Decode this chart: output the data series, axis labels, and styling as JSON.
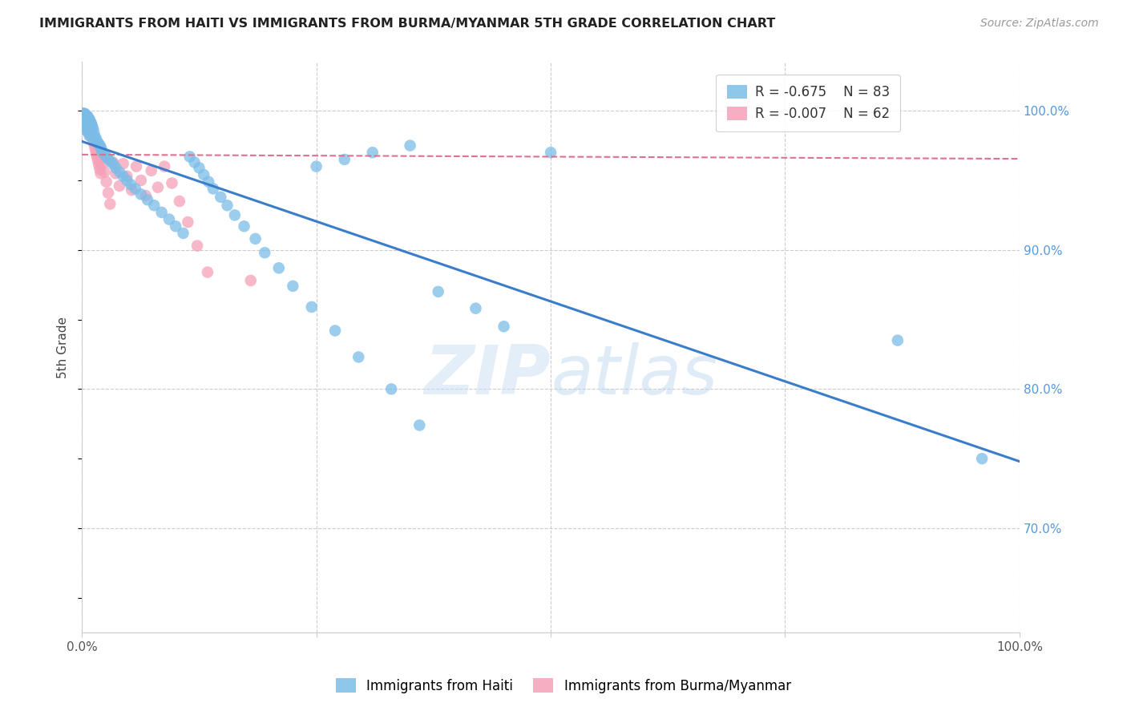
{
  "title": "IMMIGRANTS FROM HAITI VS IMMIGRANTS FROM BURMA/MYANMAR 5TH GRADE CORRELATION CHART",
  "source": "Source: ZipAtlas.com",
  "ylabel": "5th Grade",
  "xlim": [
    0.0,
    1.0
  ],
  "ylim": [
    0.625,
    1.035
  ],
  "ytick_labels": [
    "70.0%",
    "80.0%",
    "90.0%",
    "100.0%"
  ],
  "ytick_values": [
    0.7,
    0.8,
    0.9,
    1.0
  ],
  "grid_color": "#cccccc",
  "background_color": "#ffffff",
  "haiti_color": "#7bbde8",
  "burma_color": "#f5a0b8",
  "haiti_line_color": "#3a7dc9",
  "burma_line_color": "#e07090",
  "haiti_R": -0.675,
  "haiti_N": 83,
  "burma_R": -0.007,
  "burma_N": 62,
  "haiti_trendline_x": [
    0.0,
    1.0
  ],
  "haiti_trendline_y": [
    0.978,
    0.748
  ],
  "burma_trendline_x": [
    0.0,
    1.0
  ],
  "burma_trendline_y": [
    0.9685,
    0.9655
  ],
  "watermark_zip": "ZIP",
  "watermark_atlas": "atlas",
  "right_axis_color": "#5599dd",
  "bottom_legend_labels": [
    "Immigrants from Haiti",
    "Immigrants from Burma/Myanmar"
  ],
  "haiti_x": [
    0.001,
    0.002,
    0.002,
    0.003,
    0.003,
    0.003,
    0.004,
    0.004,
    0.004,
    0.005,
    0.005,
    0.005,
    0.006,
    0.006,
    0.006,
    0.007,
    0.007,
    0.008,
    0.008,
    0.008,
    0.009,
    0.009,
    0.01,
    0.01,
    0.011,
    0.011,
    0.012,
    0.013,
    0.014,
    0.015,
    0.016,
    0.017,
    0.018,
    0.019,
    0.02,
    0.021,
    0.022,
    0.025,
    0.027,
    0.03,
    0.033,
    0.036,
    0.04,
    0.044,
    0.048,
    0.052,
    0.057,
    0.063,
    0.07,
    0.077,
    0.085,
    0.093,
    0.1,
    0.108,
    0.115,
    0.12,
    0.125,
    0.13,
    0.135,
    0.14,
    0.148,
    0.155,
    0.163,
    0.173,
    0.185,
    0.195,
    0.21,
    0.225,
    0.245,
    0.27,
    0.295,
    0.33,
    0.36,
    0.31,
    0.28,
    0.25,
    0.38,
    0.42,
    0.35,
    0.45,
    0.5,
    0.96,
    0.87
  ],
  "haiti_y": [
    0.998,
    0.995,
    0.993,
    0.998,
    0.994,
    0.99,
    0.997,
    0.992,
    0.988,
    0.996,
    0.991,
    0.986,
    0.996,
    0.99,
    0.985,
    0.994,
    0.988,
    0.994,
    0.987,
    0.982,
    0.992,
    0.985,
    0.991,
    0.983,
    0.989,
    0.981,
    0.987,
    0.984,
    0.981,
    0.98,
    0.978,
    0.977,
    0.976,
    0.975,
    0.974,
    0.972,
    0.97,
    0.968,
    0.966,
    0.964,
    0.962,
    0.959,
    0.956,
    0.953,
    0.95,
    0.947,
    0.944,
    0.94,
    0.936,
    0.932,
    0.927,
    0.922,
    0.917,
    0.912,
    0.967,
    0.963,
    0.959,
    0.954,
    0.949,
    0.944,
    0.938,
    0.932,
    0.925,
    0.917,
    0.908,
    0.898,
    0.887,
    0.874,
    0.859,
    0.842,
    0.823,
    0.8,
    0.774,
    0.97,
    0.965,
    0.96,
    0.87,
    0.858,
    0.975,
    0.845,
    0.97,
    0.75,
    0.835
  ],
  "burma_x": [
    0.001,
    0.001,
    0.002,
    0.002,
    0.002,
    0.003,
    0.003,
    0.003,
    0.004,
    0.004,
    0.004,
    0.005,
    0.005,
    0.005,
    0.006,
    0.006,
    0.006,
    0.007,
    0.007,
    0.007,
    0.008,
    0.008,
    0.008,
    0.009,
    0.009,
    0.009,
    0.01,
    0.01,
    0.011,
    0.012,
    0.013,
    0.014,
    0.015,
    0.016,
    0.017,
    0.018,
    0.019,
    0.02,
    0.021,
    0.022,
    0.024,
    0.026,
    0.028,
    0.03,
    0.033,
    0.036,
    0.04,
    0.044,
    0.048,
    0.053,
    0.058,
    0.063,
    0.068,
    0.074,
    0.081,
    0.088,
    0.096,
    0.104,
    0.113,
    0.123,
    0.134,
    0.18
  ],
  "burma_y": [
    0.998,
    0.996,
    0.998,
    0.995,
    0.992,
    0.997,
    0.994,
    0.99,
    0.997,
    0.993,
    0.989,
    0.996,
    0.992,
    0.988,
    0.996,
    0.991,
    0.987,
    0.994,
    0.99,
    0.985,
    0.993,
    0.989,
    0.984,
    0.992,
    0.987,
    0.982,
    0.99,
    0.985,
    0.982,
    0.979,
    0.976,
    0.973,
    0.97,
    0.967,
    0.964,
    0.961,
    0.958,
    0.955,
    0.967,
    0.962,
    0.956,
    0.949,
    0.941,
    0.933,
    0.963,
    0.955,
    0.946,
    0.962,
    0.953,
    0.943,
    0.96,
    0.95,
    0.939,
    0.957,
    0.945,
    0.96,
    0.948,
    0.935,
    0.92,
    0.903,
    0.884,
    0.878
  ]
}
